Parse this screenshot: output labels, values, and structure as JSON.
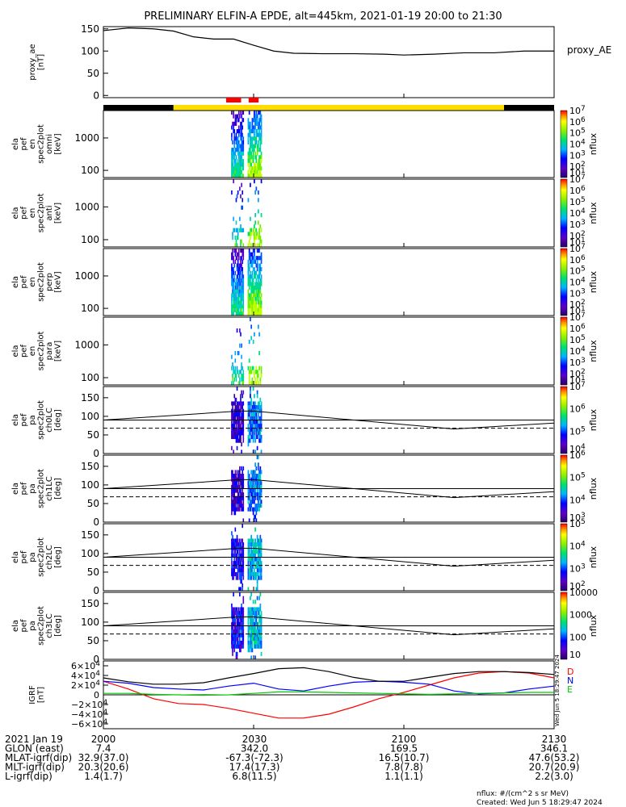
{
  "title": "PRELIMINARY ELFIN-A EPDE, alt=445km, 2021-01-19 20:00 to 21:30",
  "colors": {
    "ae_line": "#000000",
    "bar_day": "#ffdd00",
    "bar_night": "#000000",
    "science_marker": "#ff0000",
    "igrf_D": "#ff0000",
    "igrf_N": "#0000ff",
    "igrf_E": "#00cc00",
    "igrf_total": "#000000"
  },
  "status_bar": {
    "night_until_min": 14,
    "day_from_min": 14,
    "day_until_min": 80,
    "markers": [
      [
        24.5,
        27.5
      ],
      [
        29,
        31
      ]
    ]
  },
  "chart_data": [
    {
      "type": "line",
      "name": "proxy_ae",
      "ylabel": [
        "proxy_ae",
        "[nT]"
      ],
      "legend": "proxy_AE",
      "ylim": [
        -5,
        155
      ],
      "yticks": [
        0,
        50,
        100,
        150
      ],
      "x_minutes": [
        0,
        5,
        10,
        14,
        18,
        22,
        26,
        30,
        34,
        38,
        44,
        50,
        56,
        60,
        66,
        72,
        78,
        84,
        90
      ],
      "values": [
        146,
        152,
        150,
        145,
        132,
        127,
        127,
        113,
        100,
        95,
        94,
        94,
        93,
        91,
        93,
        96,
        96,
        100,
        100
      ]
    },
    {
      "type": "heatmap",
      "name": "en_omni",
      "ylabel": [
        "ela",
        "pef",
        "en",
        "spec2plot",
        "omni",
        "[keV]"
      ],
      "ylim": [
        60,
        7000
      ],
      "yticks": [
        100,
        1000
      ],
      "log": true,
      "cbar": {
        "label": "nflux",
        "ticks": [
          "10^1",
          "10^2",
          "10^3",
          "10^4",
          "10^5",
          "10^6",
          "10^7"
        ]
      }
    },
    {
      "type": "heatmap",
      "name": "en_anti",
      "ylabel": [
        "ela",
        "pef",
        "en",
        "spec2plot",
        "anti",
        "[keV]"
      ],
      "ylim": [
        60,
        7000
      ],
      "yticks": [
        100,
        1000
      ],
      "log": true,
      "cbar": {
        "label": "nflux",
        "ticks": [
          "10^1",
          "10^2",
          "10^3",
          "10^4",
          "10^5",
          "10^6",
          "10^7"
        ]
      }
    },
    {
      "type": "heatmap",
      "name": "en_perp",
      "ylabel": [
        "ela",
        "pef",
        "en",
        "spec2plot",
        "perp",
        "[keV]"
      ],
      "ylim": [
        60,
        7000
      ],
      "yticks": [
        100,
        1000
      ],
      "log": true,
      "cbar": {
        "label": "nflux",
        "ticks": [
          "10^1",
          "10^2",
          "10^3",
          "10^4",
          "10^5",
          "10^6",
          "10^7"
        ]
      }
    },
    {
      "type": "heatmap",
      "name": "en_para",
      "ylabel": [
        "ela",
        "pef",
        "en",
        "spec2plot",
        "para",
        "[keV]"
      ],
      "ylim": [
        60,
        7000
      ],
      "yticks": [
        100,
        1000
      ],
      "log": true,
      "cbar": {
        "label": "nflux",
        "ticks": [
          "10^1",
          "10^2",
          "10^3",
          "10^4",
          "10^5",
          "10^6",
          "10^7"
        ]
      }
    },
    {
      "type": "heatmap",
      "name": "pa_ch0LC",
      "ylabel": [
        "ela",
        "pef",
        "pa",
        "spec2plot",
        "ch0LC",
        "[deg]"
      ],
      "ylim": [
        0,
        180
      ],
      "yticks": [
        0,
        50,
        100,
        150
      ],
      "log": false,
      "cbar": {
        "label": "nflux",
        "ticks": [
          "10^4",
          "10^5",
          "10^6",
          "10^7"
        ]
      }
    },
    {
      "type": "heatmap",
      "name": "pa_ch1LC",
      "ylabel": [
        "ela",
        "pef",
        "pa",
        "spec2plot",
        "ch1LC",
        "[deg]"
      ],
      "ylim": [
        0,
        180
      ],
      "yticks": [
        0,
        50,
        100,
        150
      ],
      "log": false,
      "cbar": {
        "label": "nflux",
        "ticks": [
          "10^3",
          "10^4",
          "10^5",
          "10^6"
        ]
      }
    },
    {
      "type": "heatmap",
      "name": "pa_ch2LC",
      "ylabel": [
        "ela",
        "pef",
        "pa",
        "spec2plot",
        "ch2LC",
        "[deg]"
      ],
      "ylim": [
        0,
        180
      ],
      "yticks": [
        0,
        50,
        100,
        150
      ],
      "log": false,
      "cbar": {
        "label": "nflux",
        "ticks": [
          "10^2",
          "10^3",
          "10^4",
          "10^5"
        ]
      }
    },
    {
      "type": "heatmap",
      "name": "pa_ch3LC",
      "ylabel": [
        "ela",
        "pef",
        "pa",
        "spec2plot",
        "ch3LC",
        "[deg]"
      ],
      "ylim": [
        0,
        180
      ],
      "yticks": [
        0,
        50,
        100,
        150
      ],
      "log": false,
      "cbar": {
        "label": "nflux",
        "ticks": [
          "10",
          "100",
          "1000",
          "10000"
        ]
      }
    },
    {
      "type": "line",
      "name": "igrf",
      "ylabel": [
        "IGRF",
        "[nT]"
      ],
      "ylim": [
        -70000,
        70000
      ],
      "yticks": [
        6,
        4,
        2,
        0,
        -2,
        -4,
        -6
      ],
      "legend": [
        "D",
        "N",
        "E"
      ],
      "x_minutes": [
        0,
        5,
        10,
        15,
        20,
        25,
        30,
        35,
        40,
        45,
        50,
        55,
        60,
        65,
        70,
        75,
        80,
        85,
        90
      ],
      "series": [
        {
          "name": "D",
          "values": [
            28000,
            12000,
            -8000,
            -18000,
            -20000,
            -28000,
            -38000,
            -48000,
            -48000,
            -40000,
            -25000,
            -8000,
            5000,
            20000,
            35000,
            45000,
            48000,
            45000,
            35000
          ]
        },
        {
          "name": "N",
          "values": [
            28000,
            24000,
            15000,
            12000,
            10000,
            18000,
            24000,
            12000,
            8000,
            18000,
            26000,
            28000,
            26000,
            22000,
            8000,
            2000,
            4000,
            12000,
            18000
          ]
        },
        {
          "name": "E",
          "values": [
            3000,
            3000,
            1000,
            0,
            -1000,
            0,
            3000,
            6000,
            6000,
            5000,
            4000,
            3000,
            2000,
            1000,
            2000,
            3000,
            4000,
            5000,
            5000
          ]
        },
        {
          "name": "",
          "values": [
            35000,
            27000,
            22000,
            22000,
            25000,
            35000,
            44000,
            54000,
            56000,
            48000,
            36000,
            28000,
            28000,
            36000,
            44000,
            48000,
            48000,
            46000,
            42000
          ]
        }
      ]
    }
  ],
  "ephemeris": {
    "rows": [
      {
        "label": "2021 Jan 19",
        "values": [
          "2000",
          "2030",
          "2100",
          "2130"
        ]
      },
      {
        "label": "GLON (east)",
        "values": [
          "7.4",
          "342.0",
          "169.5",
          "346.1"
        ]
      },
      {
        "label": "MLAT-igrf(dip)",
        "values": [
          "32.9(37.0)",
          "-67.3(-72.3)",
          "16.5(10.7)",
          "47.6(53.2)"
        ]
      },
      {
        "label": "MLT-igrf(dip)",
        "values": [
          "20.3(20.6)",
          "17.4(17.3)",
          "7.8(7.8)",
          "20.7(20.9)"
        ]
      },
      {
        "label": "L-igrf(dip)",
        "values": [
          "1.4(1.7)",
          "6.8(11.5)",
          "1.1(1.1)",
          "2.2(3.0)"
        ]
      }
    ]
  },
  "footer": {
    "units": "nflux: #/(cm^2 s sr MeV)",
    "created": "Created: Wed Jun  5 18:29:47 2024",
    "side_stamp": "Wed Jun  5 18:29:47 2024"
  }
}
